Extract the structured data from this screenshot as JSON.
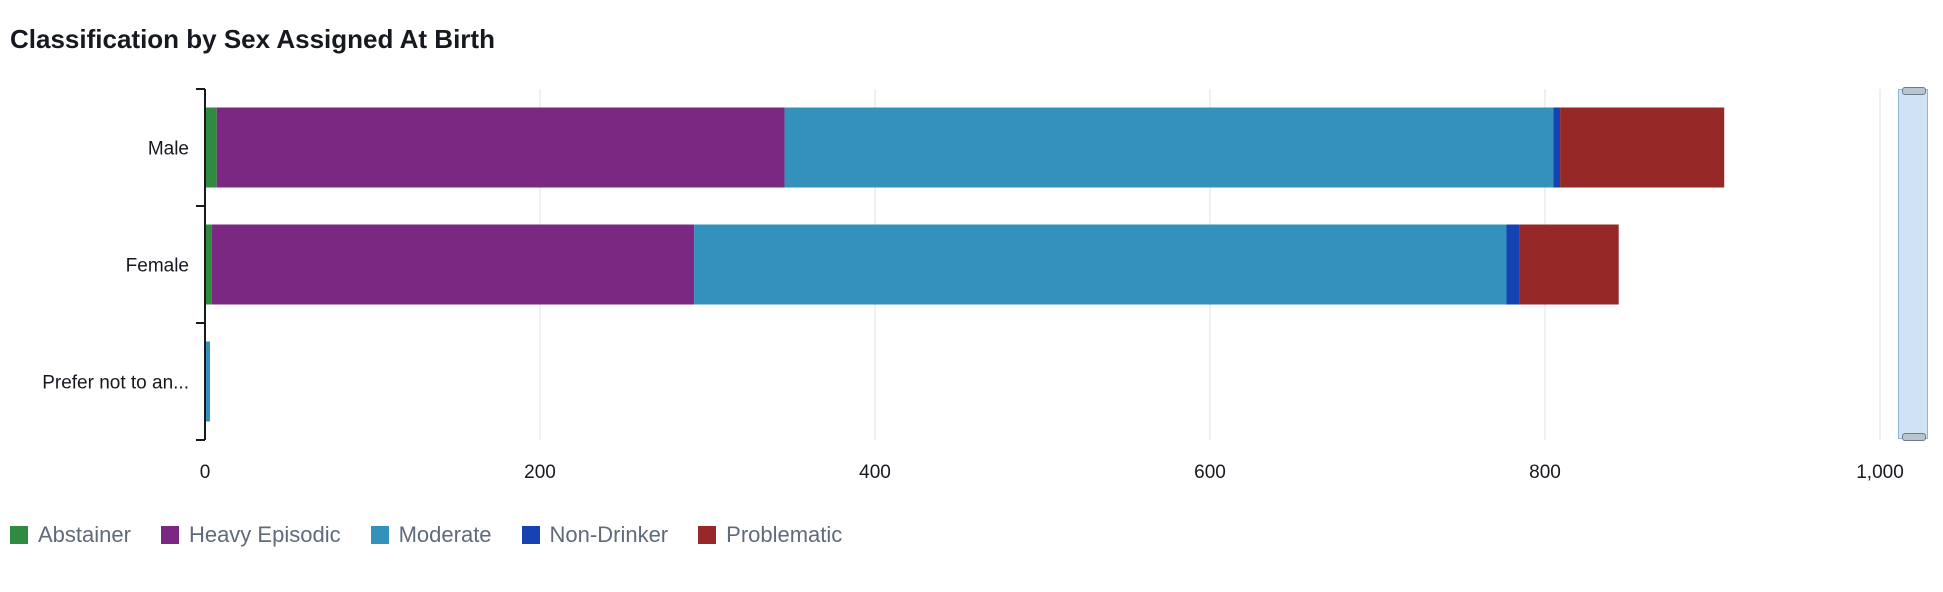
{
  "title": "Classification by Sex Assigned At Birth",
  "chart_data": {
    "type": "bar",
    "orientation": "horizontal",
    "stacked": true,
    "title": "Classification by Sex Assigned At Birth",
    "categories": [
      "Male",
      "Female",
      "Prefer not to an..."
    ],
    "series": [
      {
        "name": "Abstainer",
        "color": "#2e8b3f",
        "values": [
          7,
          4,
          0
        ]
      },
      {
        "name": "Heavy Episodic",
        "color": "#7a2881",
        "values": [
          339,
          288,
          0
        ]
      },
      {
        "name": "Moderate",
        "color": "#3391bb",
        "values": [
          459,
          485,
          3
        ]
      },
      {
        "name": "Non-Drinker",
        "color": "#1742b2",
        "values": [
          4,
          8,
          0
        ]
      },
      {
        "name": "Problematic",
        "color": "#962828",
        "values": [
          98,
          59,
          0
        ]
      }
    ],
    "x_ticks": [
      0,
      200,
      400,
      600,
      800,
      1000
    ],
    "x_tick_labels": [
      "0",
      "200",
      "400",
      "600",
      "800",
      "1,000"
    ],
    "xlim": [
      0,
      1000
    ],
    "grid": true,
    "legend_position": "bottom-left"
  }
}
